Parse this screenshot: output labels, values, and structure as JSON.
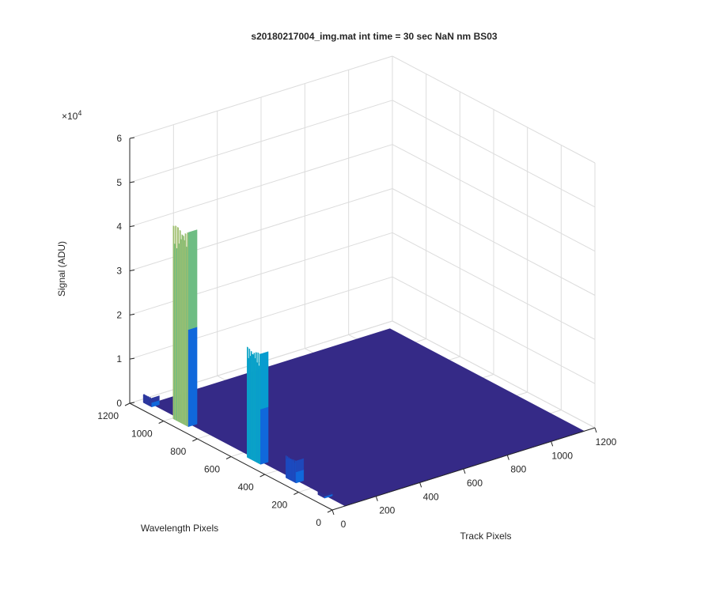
{
  "chart_data": {
    "type": "surface3d",
    "title": "s20180217004_img.mat int time = 30 sec   NaN nm BS03",
    "zlabel": "Signal (ADU)",
    "xlabel": "Track Pixels",
    "ylabel": "Wavelength Pixels",
    "z_exponent_label": "×10",
    "z_exponent_power": "4",
    "x_ticks": [
      "0",
      "200",
      "400",
      "600",
      "800",
      "1000",
      "1200"
    ],
    "y_ticks": [
      "0",
      "200",
      "400",
      "600",
      "800",
      "1000",
      "1200"
    ],
    "z_ticks": [
      "0",
      "1",
      "2",
      "3",
      "4",
      "5",
      "6"
    ],
    "x_range": [
      0,
      1200
    ],
    "y_range": [
      0,
      1200
    ],
    "z_range": [
      0,
      60000
    ],
    "grid": true,
    "colormap": "parula",
    "floor_color": "#352a87",
    "peaks": [
      {
        "x": 60,
        "y": 950,
        "height": 44000,
        "width_x": 40,
        "width_y": 90
      },
      {
        "x": 60,
        "y": 520,
        "height": 25000,
        "width_x": 35,
        "width_y": 80
      },
      {
        "x": 60,
        "y": 300,
        "height": 5000,
        "width_x": 35,
        "width_y": 60
      },
      {
        "x": 60,
        "y": 1150,
        "height": 2000,
        "width_x": 35,
        "width_y": 50
      },
      {
        "x": 60,
        "y": 120,
        "height": 800,
        "width_x": 35,
        "width_y": 40
      }
    ]
  }
}
